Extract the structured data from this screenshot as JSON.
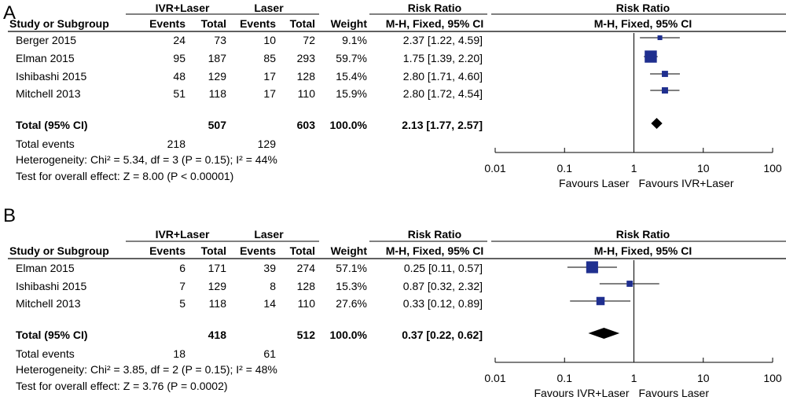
{
  "columns": {
    "study": "Study or Subgroup",
    "events": "Events",
    "total": "Total",
    "weight": "Weight",
    "rr_header": "Risk Ratio",
    "rr_method": "M-H, Fixed, 95% CI"
  },
  "chart_data": [
    {
      "type": "forest",
      "panel": "A",
      "group1": "IVR+Laser",
      "group2": "Laser",
      "studies": [
        {
          "name": "Berger 2015",
          "e1": "24",
          "n1": "73",
          "e2": "10",
          "n2": "72",
          "weight": "9.1%",
          "ci_text": "2.37 [1.22, 4.59]",
          "rr": 2.37,
          "lo": 1.22,
          "hi": 4.59
        },
        {
          "name": "Elman 2015",
          "e1": "95",
          "n1": "187",
          "e2": "85",
          "n2": "293",
          "weight": "59.7%",
          "ci_text": "1.75 [1.39, 2.20]",
          "rr": 1.75,
          "lo": 1.39,
          "hi": 2.2
        },
        {
          "name": "Ishibashi 2015",
          "e1": "48",
          "n1": "129",
          "e2": "17",
          "n2": "128",
          "weight": "15.4%",
          "ci_text": "2.80 [1.71, 4.60]",
          "rr": 2.8,
          "lo": 1.71,
          "hi": 4.6
        },
        {
          "name": "Mitchell 2013",
          "e1": "51",
          "n1": "118",
          "e2": "17",
          "n2": "110",
          "weight": "15.9%",
          "ci_text": "2.80 [1.72, 4.54]",
          "rr": 2.8,
          "lo": 1.72,
          "hi": 4.54
        }
      ],
      "total": {
        "label": "Total (95% CI)",
        "n1": "507",
        "n2": "603",
        "weight": "100.0%",
        "ci_text": "2.13 [1.77, 2.57]",
        "rr": 2.13,
        "lo": 1.77,
        "hi": 2.57
      },
      "total_events": {
        "label": "Total events",
        "e1": "218",
        "e2": "129"
      },
      "heterogeneity": "Heterogeneity: Chi² = 5.34, df = 3 (P = 0.15); I² = 44%",
      "overall_effect": "Test for overall effect: Z = 8.00 (P < 0.00001)",
      "axis": {
        "scale": "log",
        "ticks": [
          0.01,
          0.1,
          1,
          10,
          100
        ],
        "tick_labels": [
          "0.01",
          "0.1",
          "1",
          "10",
          "100"
        ],
        "range": [
          0.01,
          100
        ]
      },
      "favours_left": "Favours Laser",
      "favours_right": "Favours IVR+Laser"
    },
    {
      "type": "forest",
      "panel": "B",
      "group1": "IVR+Laser",
      "group2": "Laser",
      "studies": [
        {
          "name": "Elman 2015",
          "e1": "6",
          "n1": "171",
          "e2": "39",
          "n2": "274",
          "weight": "57.1%",
          "ci_text": "0.25 [0.11, 0.57]",
          "rr": 0.25,
          "lo": 0.11,
          "hi": 0.57
        },
        {
          "name": "Ishibashi 2015",
          "e1": "7",
          "n1": "129",
          "e2": "8",
          "n2": "128",
          "weight": "15.3%",
          "ci_text": "0.87 [0.32, 2.32]",
          "rr": 0.87,
          "lo": 0.32,
          "hi": 2.32
        },
        {
          "name": "Mitchell 2013",
          "e1": "5",
          "n1": "118",
          "e2": "14",
          "n2": "110",
          "weight": "27.6%",
          "ci_text": "0.33 [0.12, 0.89]",
          "rr": 0.33,
          "lo": 0.12,
          "hi": 0.89
        }
      ],
      "total": {
        "label": "Total (95% CI)",
        "n1": "418",
        "n2": "512",
        "weight": "100.0%",
        "ci_text": "0.37 [0.22, 0.62]",
        "rr": 0.37,
        "lo": 0.22,
        "hi": 0.62
      },
      "total_events": {
        "label": "Total events",
        "e1": "18",
        "e2": "61"
      },
      "heterogeneity": "Heterogeneity: Chi² = 3.85, df = 2 (P = 0.15); I² = 48%",
      "overall_effect": "Test for overall effect: Z = 3.76 (P = 0.0002)",
      "axis": {
        "scale": "log",
        "ticks": [
          0.01,
          0.1,
          1,
          10,
          100
        ],
        "tick_labels": [
          "0.01",
          "0.1",
          "1",
          "10",
          "100"
        ],
        "range": [
          0.01,
          100
        ]
      },
      "favours_left": "Favours IVR+Laser",
      "favours_right": "Favours Laser"
    }
  ],
  "colors": {
    "study_marker": "#1f2f8f",
    "total_diamond": "#000000",
    "lines": "#000000"
  }
}
